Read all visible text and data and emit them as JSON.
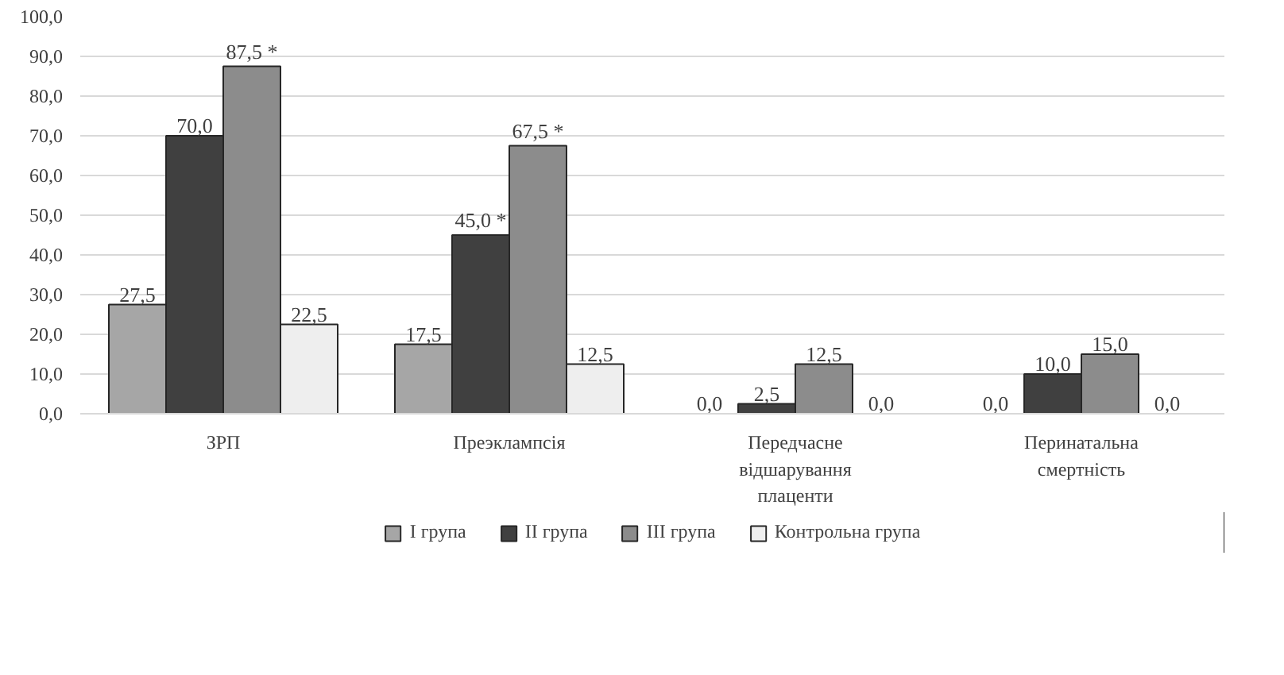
{
  "chart_data": {
    "type": "bar",
    "categories": [
      "ЗРП",
      "Преэклампсія",
      "Передчасне відшарування плаценти",
      "Перинатальна смертність"
    ],
    "series": [
      {
        "name": "I група",
        "color": "#a6a6a6",
        "values": [
          27.5,
          17.5,
          0.0,
          0.0
        ],
        "value_labels": [
          "27,5",
          "17,5",
          "0,0",
          "0,0"
        ]
      },
      {
        "name": "II група",
        "color": "#404040",
        "values": [
          70.0,
          45.0,
          2.5,
          10.0
        ],
        "value_labels": [
          "70,0",
          "45,0 *",
          "2,5",
          "10,0"
        ]
      },
      {
        "name": "III група",
        "color": "#8c8c8c",
        "values": [
          87.5,
          67.5,
          12.5,
          15.0
        ],
        "value_labels": [
          "87,5 *",
          "67,5 *",
          "12,5",
          "15,0"
        ]
      },
      {
        "name": "Контрольна група",
        "color": "#eeeeee",
        "values": [
          22.5,
          12.5,
          0.0,
          0.0
        ],
        "value_labels": [
          "22,5",
          "12,5",
          "0,0",
          "0,0"
        ]
      }
    ],
    "ylim": [
      0,
      100
    ],
    "yticks": [
      {
        "value": 0,
        "label": "0,0"
      },
      {
        "value": 10,
        "label": "10,0"
      },
      {
        "value": 20,
        "label": "20,0"
      },
      {
        "value": 30,
        "label": "30,0"
      },
      {
        "value": 40,
        "label": "40,0"
      },
      {
        "value": 50,
        "label": "50,0"
      },
      {
        "value": 60,
        "label": "60,0"
      },
      {
        "value": 70,
        "label": "70,0"
      },
      {
        "value": 80,
        "label": "80,0"
      },
      {
        "value": 90,
        "label": "90,0"
      },
      {
        "value": 100,
        "label": "100,0"
      }
    ],
    "grid": "y",
    "legend": "bottom"
  }
}
